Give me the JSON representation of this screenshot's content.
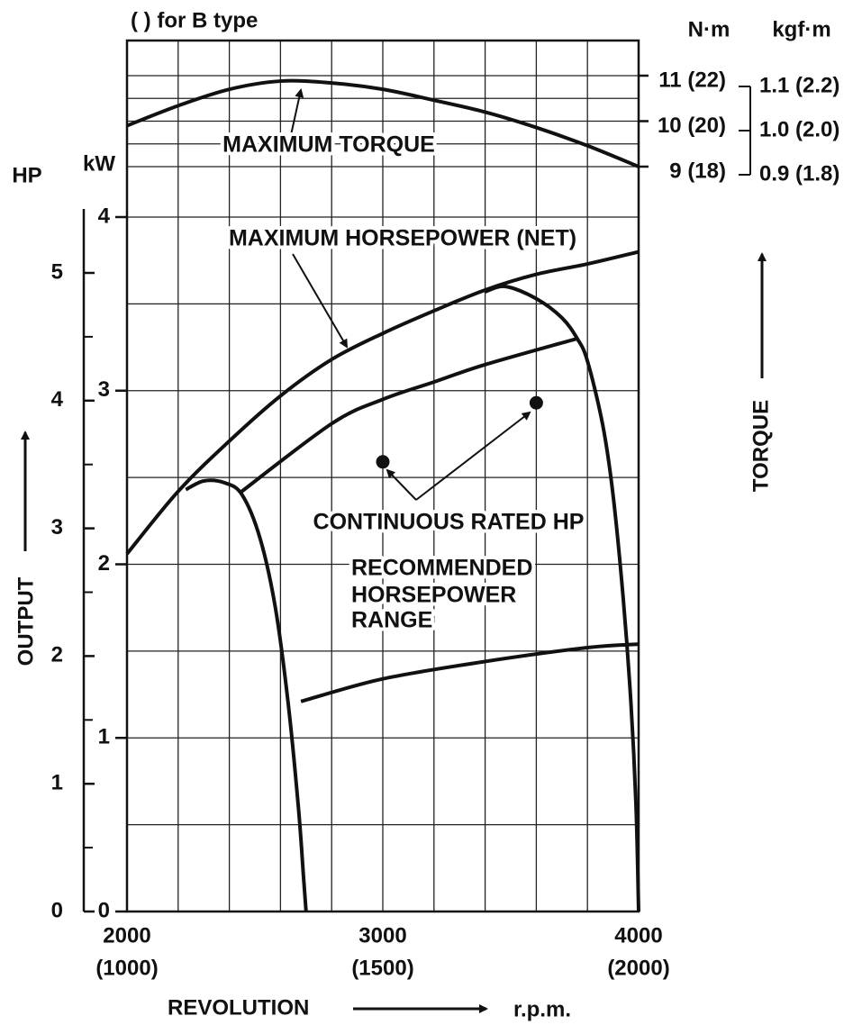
{
  "chart_data": {
    "type": "line",
    "title": "( ) for B type",
    "xlabel": "REVOLUTION",
    "xunit": "r.p.m.",
    "xlim": [
      2000,
      4000
    ],
    "xticks": [
      2000,
      3000,
      4000
    ],
    "x2lim": [
      1000,
      2000
    ],
    "x2ticks": [
      {
        "value": 1000,
        "label": "(1000)"
      },
      {
        "value": 1500,
        "label": "(1500)"
      },
      {
        "value": 2000,
        "label": "(2000)"
      }
    ],
    "xgrid": [
      2000,
      2200,
      2400,
      2600,
      2800,
      3000,
      3200,
      3400,
      3600,
      3800,
      4000
    ],
    "ylabel": "OUTPUT",
    "yunit": "kW",
    "ylim": [
      0,
      4
    ],
    "yticks": [
      0,
      1,
      2,
      3,
      4
    ],
    "ygrid": [
      0,
      0.5,
      1,
      1.5,
      2,
      2.5,
      3,
      3.5,
      4
    ],
    "y3unit": "HP",
    "y3lim": [
      0,
      5
    ],
    "y3ticks": [
      0,
      1,
      2,
      3,
      4,
      5
    ],
    "y3minorticks": [
      0.5,
      1.5,
      2.5,
      3.5,
      4.5
    ],
    "y2label": "TORQUE",
    "y2unit": "N·m",
    "y2lim": [
      9,
      11
    ],
    "y2ticks": [
      {
        "value": 9,
        "label": "9 (18)"
      },
      {
        "value": 10,
        "label": "10 (20)"
      },
      {
        "value": 11,
        "label": "11 (22)"
      }
    ],
    "y2grid": [
      9,
      9.5,
      10,
      10.5,
      11
    ],
    "y4unit": "kgf·m",
    "y4lim": [
      0.9,
      1.1
    ],
    "y4ticks": [
      {
        "value": 0.9,
        "label": "0.9 (1.8)"
      },
      {
        "value": 1.0,
        "label": "1.0 (2.0)"
      },
      {
        "value": 1.1,
        "label": "1.1 (2.2)"
      }
    ],
    "grid": true,
    "series": [
      {
        "name": "MAXIMUM TORQUE",
        "color": "#111111",
        "axis": "y2",
        "x": [
          2000,
          2200,
          2400,
          2600,
          2800,
          3000,
          3200,
          3400,
          3600,
          3800,
          4000
        ],
        "values": [
          9.9,
          10.34,
          10.7,
          10.88,
          10.84,
          10.7,
          10.46,
          10.2,
          9.86,
          9.46,
          9.0
        ]
      },
      {
        "name": "MAXIMUM HORSEPOWER (NET)",
        "color": "#111111",
        "x": [
          2000,
          2200,
          2400,
          2600,
          2800,
          3000,
          3200,
          3400,
          3600,
          3800,
          4000
        ],
        "values": [
          2.06,
          2.42,
          2.71,
          2.97,
          3.18,
          3.33,
          3.46,
          3.58,
          3.67,
          3.73,
          3.8
        ]
      },
      {
        "name": [
          "RECOMMENDED",
          "HORSEPOWER",
          "RANGE"
        ],
        "color": "#111111",
        "x": [
          2230,
          2300,
          2380,
          2450,
          2520,
          2580,
          2630,
          2670,
          2690,
          2700,
          null,
          2440,
          2800,
          3000,
          3200,
          3400,
          3760,
          null,
          3400,
          3480,
          3600,
          3700,
          3760,
          3800,
          3860,
          3900,
          3940,
          3970,
          3990,
          4000,
          null,
          2680,
          3000,
          3400,
          3800,
          4000
        ],
        "values": [
          2.43,
          2.48,
          2.47,
          2.4,
          2.15,
          1.75,
          1.2,
          0.6,
          0.2,
          0,
          null,
          2.41,
          2.81,
          2.95,
          3.05,
          3.15,
          3.3,
          null,
          3.57,
          3.6,
          3.53,
          3.42,
          3.3,
          3.17,
          2.8,
          2.4,
          1.8,
          1.2,
          0.6,
          0,
          null,
          1.21,
          1.34,
          1.44,
          1.52,
          1.54
        ]
      },
      {
        "name": "CONTINUOUS RATED HP",
        "color": "#111111",
        "type": "scatter",
        "x": [
          3000,
          3600
        ],
        "values": [
          2.59,
          2.93
        ]
      }
    ]
  }
}
